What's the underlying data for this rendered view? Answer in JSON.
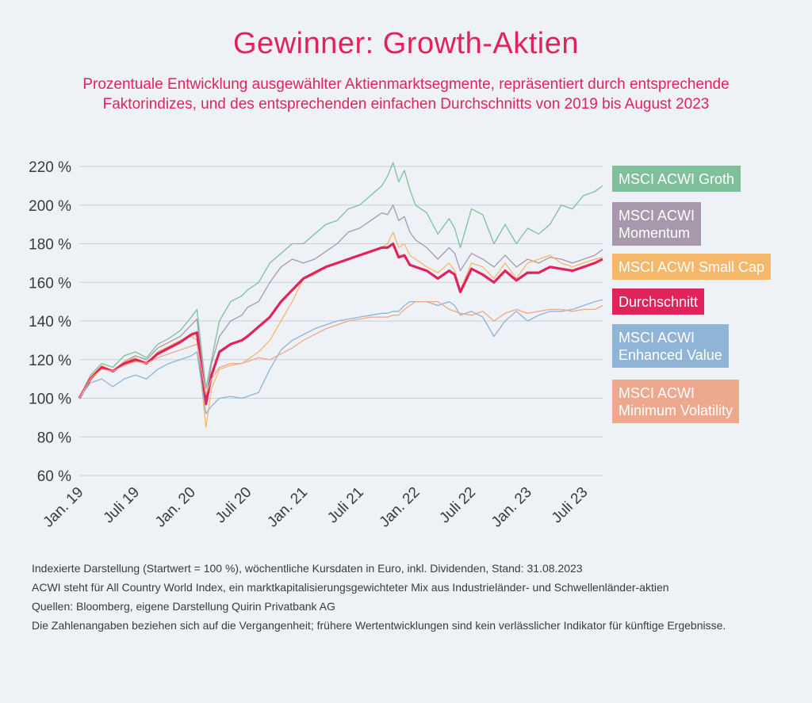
{
  "title": "Gewinner: Growth-Aktien",
  "subtitle": "Prozentuale Entwicklung ausgewählter Aktienmarktsegmente, repräsentiert durch entsprechende Faktorindizes, und des entsprechenden einfachen Durchschnitts von 2019 bis August 2023",
  "notes": [
    "Indexierte Darstellung (Startwert = 100 %), wöchentliche Kursdaten in Euro, inkl. Dividenden, Stand: 31.08.2023",
    "ACWI steht für All Country World Index, ein marktkapitalisierungsgewichteter Mix aus Industrieländer- und Schwellenländer-aktien",
    "Quellen: Bloomberg, eigene Darstellung Quirin Privatbank AG",
    "Die Zahlenangaben beziehen sich auf die Vergangenheit; frühere Wertentwicklungen sind kein verlässlicher Indikator für künftige Ergebnisse."
  ],
  "chart_data": {
    "type": "line",
    "ylim": [
      60,
      220
    ],
    "yticks": [
      60,
      80,
      100,
      120,
      140,
      160,
      180,
      200,
      220
    ],
    "ytick_suffix": " %",
    "grid": true,
    "legend_placement": "right",
    "xticks": [
      "Jan. 19",
      "Juli 19",
      "Jan. 20",
      "Juli 20",
      "Jan. 21",
      "Juli 21",
      "Jan. 22",
      "Juli 22",
      "Jan. 23",
      "Juli 23"
    ],
    "xtick_positions": [
      0,
      0.5,
      1,
      1.5,
      2,
      2.5,
      3,
      3.5,
      4,
      4.5
    ],
    "xlim": [
      0,
      4.67
    ],
    "x": [
      0,
      0.1,
      0.2,
      0.3,
      0.4,
      0.5,
      0.6,
      0.7,
      0.8,
      0.9,
      1.0,
      1.05,
      1.13,
      1.18,
      1.25,
      1.35,
      1.45,
      1.5,
      1.6,
      1.7,
      1.8,
      1.9,
      2.0,
      2.1,
      2.2,
      2.3,
      2.4,
      2.5,
      2.6,
      2.7,
      2.75,
      2.8,
      2.85,
      2.9,
      2.95,
      3.0,
      3.1,
      3.2,
      3.3,
      3.35,
      3.4,
      3.5,
      3.6,
      3.7,
      3.8,
      3.9,
      4.0,
      4.1,
      4.2,
      4.3,
      4.4,
      4.5,
      4.6,
      4.67
    ],
    "series": [
      {
        "name": "MSCI ACWI Groth",
        "color": "#7fbf9b",
        "width": 1.3,
        "values": [
          100,
          112,
          118,
          116,
          122,
          124,
          121,
          128,
          131,
          135,
          142,
          146,
          105,
          120,
          140,
          150,
          153,
          156,
          160,
          170,
          175,
          180,
          180,
          185,
          190,
          192,
          198,
          200,
          205,
          210,
          215,
          222,
          212,
          218,
          208,
          200,
          196,
          185,
          193,
          188,
          178,
          198,
          195,
          180,
          190,
          180,
          188,
          185,
          190,
          200,
          198,
          205,
          207,
          210
        ]
      },
      {
        "name": "MSCI ACWI Momentum",
        "color": "#a798ab",
        "width": 1.3,
        "values": [
          100,
          110,
          116,
          114,
          119,
          122,
          120,
          126,
          129,
          132,
          138,
          141,
          100,
          118,
          132,
          140,
          143,
          147,
          150,
          160,
          168,
          172,
          170,
          172,
          176,
          180,
          186,
          188,
          192,
          196,
          195,
          200,
          192,
          194,
          186,
          182,
          178,
          172,
          178,
          175,
          166,
          175,
          172,
          168,
          174,
          168,
          172,
          170,
          173,
          172,
          170,
          172,
          174,
          177
        ]
      },
      {
        "name": "MSCI ACWI Small Cap",
        "color": "#f5b86b",
        "width": 1.3,
        "values": [
          100,
          111,
          117,
          114,
          119,
          121,
          118,
          124,
          127,
          130,
          132,
          130,
          85,
          105,
          115,
          117,
          118,
          120,
          124,
          130,
          140,
          150,
          162,
          164,
          168,
          170,
          172,
          174,
          176,
          178,
          180,
          186,
          178,
          180,
          174,
          172,
          168,
          165,
          170,
          166,
          156,
          170,
          168,
          162,
          170,
          162,
          170,
          172,
          174,
          170,
          168,
          170,
          172,
          173
        ]
      },
      {
        "name": "Durchschnitt",
        "color": "#e0235a",
        "width": 3.2,
        "values": [
          100,
          110,
          116,
          114,
          118,
          120,
          118,
          123,
          126,
          129,
          133,
          134,
          97,
          112,
          124,
          128,
          130,
          132,
          137,
          142,
          150,
          156,
          162,
          165,
          168,
          170,
          172,
          174,
          176,
          178,
          178,
          180,
          173,
          174,
          169,
          168,
          166,
          162,
          166,
          164,
          155,
          167,
          164,
          160,
          166,
          161,
          165,
          165,
          168,
          167,
          166,
          168,
          170,
          172
        ]
      },
      {
        "name": "MSCI ACWI Enhanced Value",
        "color": "#8fb4d6",
        "width": 1.3,
        "values": [
          100,
          108,
          110,
          106,
          110,
          112,
          110,
          115,
          118,
          120,
          122,
          124,
          92,
          96,
          100,
          101,
          100,
          101,
          103,
          115,
          125,
          130,
          133,
          136,
          138,
          140,
          141,
          142,
          143,
          144,
          144,
          145,
          145,
          148,
          150,
          150,
          150,
          148,
          150,
          148,
          143,
          145,
          142,
          132,
          140,
          145,
          140,
          143,
          145,
          145,
          146,
          148,
          150,
          151
        ]
      },
      {
        "name": "MSCI ACWI Minimum Volatility",
        "color": "#eda88d",
        "width": 1.3,
        "values": [
          100,
          110,
          115,
          114,
          117,
          119,
          118,
          121,
          123,
          125,
          127,
          128,
          102,
          110,
          116,
          118,
          118,
          119,
          121,
          120,
          123,
          126,
          130,
          133,
          136,
          138,
          140,
          141,
          142,
          142,
          142,
          143,
          143,
          146,
          148,
          150,
          150,
          150,
          146,
          145,
          144,
          143,
          145,
          140,
          144,
          146,
          144,
          145,
          146,
          146,
          145,
          146,
          146,
          148
        ]
      }
    ]
  },
  "legend": [
    {
      "lines": [
        "MSCI ACWI Groth"
      ],
      "color": "#7fbf9b"
    },
    {
      "lines": [
        "MSCI ACWI",
        "Momentum"
      ],
      "color": "#a798ab"
    },
    {
      "lines": [
        "MSCI ACWI Small Cap"
      ],
      "color": "#f5b86b"
    },
    {
      "lines": [
        "Durchschnitt"
      ],
      "color": "#e0235a"
    },
    {
      "lines": [
        "MSCI ACWI",
        "Enhanced Value"
      ],
      "color": "#8fb4d6"
    },
    {
      "lines": [
        "MSCI ACWI",
        "Minimum Volatility"
      ],
      "color": "#eda88d"
    }
  ]
}
